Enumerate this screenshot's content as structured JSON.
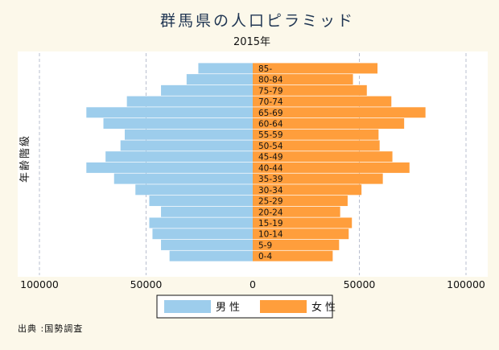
{
  "chart_data": {
    "type": "bar",
    "orientation": "horizontal-population-pyramid",
    "title": "群馬県の人口ピラミッド",
    "subtitle": "2015年",
    "ylabel": "年齢階級",
    "xlim": [
      -100000,
      100000
    ],
    "xticks": [
      {
        "value": -100000,
        "label": "100000"
      },
      {
        "value": -50000,
        "label": "50000"
      },
      {
        "value": 0,
        "label": "0"
      },
      {
        "value": 50000,
        "label": "50000"
      },
      {
        "value": 100000,
        "label": "100000"
      }
    ],
    "grid": true,
    "legend_position": "bottom",
    "categories": [
      "0-4",
      "5-9",
      "10-14",
      "15-19",
      "20-24",
      "25-29",
      "30-34",
      "35-39",
      "40-44",
      "45-49",
      "50-54",
      "55-59",
      "60-64",
      "65-69",
      "70-74",
      "75-79",
      "80-84",
      "85-"
    ],
    "series": [
      {
        "name": "男性",
        "color": "#9dcdec",
        "values": [
          39000,
          43000,
          47000,
          48500,
          43000,
          48500,
          55000,
          65000,
          78000,
          69000,
          62000,
          60000,
          70000,
          78000,
          59000,
          43000,
          31000,
          25500
        ]
      },
      {
        "name": "女性",
        "color": "#ff9e3c",
        "values": [
          37500,
          40500,
          45000,
          46500,
          41000,
          44500,
          51000,
          61000,
          73500,
          65500,
          59500,
          59000,
          71000,
          81000,
          65000,
          53500,
          47000,
          58500
        ]
      }
    ]
  },
  "source_note": "出典 :国勢調査"
}
